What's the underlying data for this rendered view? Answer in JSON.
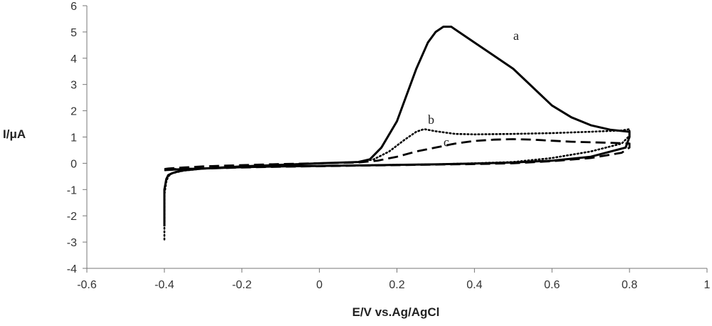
{
  "chart_data": {
    "type": "line",
    "title": "",
    "xlabel": "E/V vs.Ag/AgCl",
    "ylabel": "I/μA",
    "xlim": [
      -0.6,
      1
    ],
    "ylim": [
      -4,
      6
    ],
    "x_ticks": [
      "-0.6",
      "-0.4",
      "-0.2",
      "0",
      "0.2",
      "0.4",
      "0.6",
      "0.8",
      "1"
    ],
    "y_ticks": [
      "-4",
      "-3",
      "-2",
      "-1",
      "0",
      "1",
      "2",
      "3",
      "4",
      "5",
      "6"
    ],
    "grid": false,
    "legend": "none",
    "series": [
      {
        "name": "a",
        "style": "solid",
        "color": "#000000",
        "label_at": [
          0.5,
          4.7
        ],
        "x": [
          -0.4,
          -0.4,
          -0.4,
          -0.395,
          -0.39,
          -0.38,
          -0.37,
          -0.35,
          -0.3,
          -0.2,
          -0.1,
          0,
          0.1,
          0.13,
          0.16,
          0.2,
          0.25,
          0.28,
          0.3,
          0.32,
          0.34,
          0.37,
          0.4,
          0.45,
          0.5,
          0.55,
          0.6,
          0.65,
          0.7,
          0.75,
          0.8,
          0.8,
          0.79,
          0.7,
          0.6,
          0.5,
          0.4,
          0.3,
          0.2,
          0.1,
          0,
          -0.1,
          -0.2,
          -0.3,
          -0.35,
          -0.4
        ],
        "y": [
          -2.4,
          -1.6,
          -1.0,
          -0.6,
          -0.45,
          -0.38,
          -0.33,
          -0.27,
          -0.2,
          -0.12,
          -0.06,
          0.0,
          0.05,
          0.15,
          0.6,
          1.6,
          3.6,
          4.6,
          5.0,
          5.2,
          5.2,
          4.9,
          4.6,
          4.1,
          3.6,
          2.9,
          2.2,
          1.75,
          1.45,
          1.28,
          1.2,
          1.0,
          0.6,
          0.25,
          0.1,
          0.03,
          -0.01,
          -0.04,
          -0.06,
          -0.08,
          -0.1,
          -0.12,
          -0.15,
          -0.2,
          -0.22,
          -0.26
        ]
      },
      {
        "name": "b",
        "style": "dotted",
        "color": "#000000",
        "label_at": [
          0.28,
          1.5
        ],
        "x": [
          -0.4,
          -0.4,
          -0.4,
          -0.395,
          -0.39,
          -0.38,
          -0.35,
          -0.3,
          -0.2,
          -0.1,
          0,
          0.1,
          0.14,
          0.18,
          0.22,
          0.25,
          0.27,
          0.3,
          0.35,
          0.4,
          0.5,
          0.6,
          0.7,
          0.78,
          0.8,
          0.8,
          0.78,
          0.7,
          0.6,
          0.5,
          0.4,
          0.3,
          0.2,
          0.1,
          0,
          -0.1,
          -0.2,
          -0.3,
          -0.35,
          -0.4
        ],
        "y": [
          -2.9,
          -2.0,
          -1.2,
          -0.7,
          -0.5,
          -0.38,
          -0.28,
          -0.2,
          -0.12,
          -0.06,
          0.0,
          0.05,
          0.15,
          0.45,
          0.9,
          1.2,
          1.3,
          1.22,
          1.12,
          1.1,
          1.12,
          1.15,
          1.2,
          1.25,
          1.3,
          1.05,
          0.75,
          0.45,
          0.2,
          0.05,
          0.0,
          -0.04,
          -0.06,
          -0.08,
          -0.1,
          -0.12,
          -0.15,
          -0.2,
          -0.22,
          -0.26
        ]
      },
      {
        "name": "c",
        "style": "dashed",
        "color": "#000000",
        "label_at": [
          0.32,
          0.65
        ],
        "x": [
          -0.4,
          -0.39,
          -0.37,
          -0.35,
          -0.3,
          -0.2,
          -0.1,
          0,
          0.1,
          0.15,
          0.2,
          0.25,
          0.3,
          0.35,
          0.4,
          0.45,
          0.5,
          0.55,
          0.6,
          0.65,
          0.7,
          0.75,
          0.8,
          0.8,
          0.78,
          0.7,
          0.6,
          0.5,
          0.4,
          0.3,
          0.2,
          0.1,
          0,
          -0.1,
          -0.2,
          -0.3,
          -0.4
        ],
        "y": [
          -0.22,
          -0.2,
          -0.18,
          -0.16,
          -0.12,
          -0.07,
          -0.03,
          0.0,
          0.03,
          0.1,
          0.25,
          0.45,
          0.6,
          0.75,
          0.85,
          0.9,
          0.92,
          0.9,
          0.86,
          0.82,
          0.8,
          0.78,
          0.75,
          0.6,
          0.4,
          0.2,
          0.08,
          0.0,
          -0.03,
          -0.05,
          -0.07,
          -0.09,
          -0.11,
          -0.13,
          -0.16,
          -0.2,
          -0.23
        ]
      }
    ]
  }
}
